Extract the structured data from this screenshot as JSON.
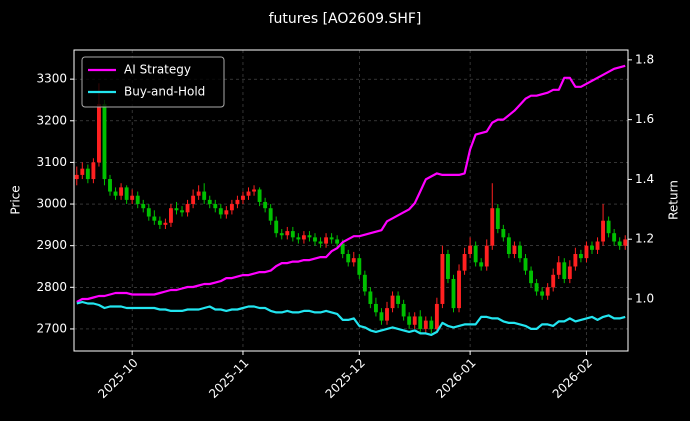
{
  "chart_data": {
    "type": "candlestick-with-returns",
    "title": "futures [AO2609.SHF]",
    "ylabel": "Price",
    "y2label": "Return",
    "up_color": "#ff2020",
    "down_color": "#00c000",
    "grid": true,
    "legend": "upper left",
    "categories": [
      null,
      null,
      null,
      null,
      null,
      null,
      null,
      null,
      null,
      null,
      null,
      null,
      null,
      null,
      null,
      null,
      null,
      null,
      null,
      null,
      null,
      null,
      null,
      null,
      null,
      null,
      null,
      null,
      null,
      null,
      null,
      null,
      null,
      null,
      null,
      null,
      null,
      null,
      null,
      null,
      null,
      null,
      null,
      null,
      null,
      null,
      null,
      null,
      null,
      null,
      null,
      null,
      null,
      null,
      null,
      null,
      null,
      null,
      null,
      null,
      null,
      null,
      null,
      null,
      null,
      null,
      null,
      null,
      null,
      null,
      null,
      null,
      null,
      null,
      null,
      null,
      null,
      null,
      null,
      null,
      null,
      null,
      null,
      null,
      null,
      null,
      null,
      null,
      null,
      null,
      null,
      null,
      null,
      null,
      null,
      null,
      null,
      null,
      null,
      null
    ],
    "xticks": [
      {
        "value": 10,
        "label": "2025-10"
      },
      {
        "value": 30,
        "label": "2025-11"
      },
      {
        "value": 51,
        "label": "2025-12"
      },
      {
        "value": 71,
        "label": "2026-01"
      },
      {
        "value": 92,
        "label": "2026-02"
      }
    ],
    "ylim": [
      2647,
      3370
    ],
    "yticks": [
      2700,
      2800,
      2900,
      3000,
      3100,
      3200,
      3300
    ],
    "y2lim": [
      0.826,
      1.833
    ],
    "y2ticks": [
      {
        "value": 1,
        "label": "1.0"
      },
      1.2,
      1.4,
      1.6,
      1.8
    ],
    "open": [
      3060,
      3070,
      3085,
      3060,
      3100,
      3240,
      3060,
      3030,
      3020,
      3040,
      3010,
      3020,
      3000,
      2990,
      2970,
      2960,
      2950,
      2955,
      2990,
      2985,
      2980,
      3000,
      3020,
      3030,
      3010,
      3000,
      2990,
      2975,
      2985,
      3000,
      3010,
      3020,
      3030,
      3035,
      3005,
      2990,
      2960,
      2930,
      2925,
      2935,
      2920,
      2915,
      2925,
      2920,
      2910,
      2905,
      2920,
      2915,
      2905,
      2880,
      2860,
      2870,
      2830,
      2790,
      2760,
      2740,
      2720,
      2750,
      2780,
      2760,
      2730,
      2710,
      2730,
      2700,
      2720,
      2700,
      2760,
      2880,
      2820,
      2750,
      2840,
      2880,
      2900,
      2860,
      2850,
      2900,
      2990,
      2940,
      2920,
      2880,
      2900,
      2870,
      2840,
      2810,
      2790,
      2780,
      2800,
      2830,
      2860,
      2820,
      2850,
      2880,
      2870,
      2900,
      2890,
      2910,
      2960,
      2930,
      2910,
      2900
    ],
    "high": [
      3090,
      3100,
      3095,
      3110,
      3290,
      3250,
      3070,
      3040,
      3050,
      3045,
      3035,
      3030,
      3010,
      3000,
      2985,
      2970,
      2965,
      3000,
      3005,
      2995,
      3010,
      3035,
      3045,
      3050,
      3020,
      3010,
      3000,
      2995,
      3010,
      3020,
      3030,
      3040,
      3045,
      3040,
      3015,
      3000,
      2970,
      2940,
      2945,
      2945,
      2930,
      2935,
      2935,
      2930,
      2920,
      2930,
      2930,
      2925,
      2915,
      2890,
      2885,
      2880,
      2840,
      2800,
      2775,
      2750,
      2765,
      2790,
      2790,
      2770,
      2740,
      2740,
      2745,
      2730,
      2730,
      2775,
      2900,
      2890,
      2830,
      2855,
      2895,
      2920,
      2910,
      2870,
      2915,
      3050,
      3000,
      2950,
      2930,
      2910,
      2910,
      2880,
      2850,
      2820,
      2800,
      2810,
      2845,
      2875,
      2870,
      2865,
      2895,
      2890,
      2910,
      2910,
      2920,
      3000,
      2970,
      2940,
      2920,
      2925
    ],
    "low": [
      3045,
      3060,
      3050,
      3050,
      3090,
      3045,
      3020,
      3010,
      3010,
      3000,
      3000,
      2990,
      2980,
      2960,
      2950,
      2940,
      2940,
      2945,
      2975,
      2970,
      2970,
      2990,
      3010,
      3000,
      2990,
      2980,
      2965,
      2965,
      2975,
      2990,
      3000,
      3010,
      3020,
      2995,
      2980,
      2950,
      2920,
      2915,
      2915,
      2910,
      2905,
      2905,
      2910,
      2900,
      2895,
      2895,
      2905,
      2895,
      2870,
      2850,
      2850,
      2820,
      2780,
      2750,
      2730,
      2710,
      2710,
      2740,
      2750,
      2720,
      2700,
      2700,
      2690,
      2690,
      2690,
      2690,
      2750,
      2810,
      2740,
      2740,
      2830,
      2870,
      2850,
      2840,
      2840,
      2890,
      2930,
      2910,
      2870,
      2870,
      2860,
      2830,
      2800,
      2780,
      2770,
      2770,
      2790,
      2820,
      2810,
      2810,
      2840,
      2860,
      2860,
      2880,
      2880,
      2900,
      2920,
      2900,
      2890,
      2890
    ],
    "close": [
      3070,
      3085,
      3060,
      3100,
      3240,
      3060,
      3030,
      3020,
      3040,
      3010,
      3020,
      3000,
      2990,
      2970,
      2960,
      2950,
      2955,
      2990,
      2985,
      2980,
      3000,
      3020,
      3030,
      3010,
      3000,
      2990,
      2975,
      2985,
      3000,
      3010,
      3020,
      3030,
      3035,
      3005,
      2990,
      2960,
      2930,
      2925,
      2935,
      2920,
      2915,
      2925,
      2920,
      2910,
      2905,
      2920,
      2915,
      2905,
      2880,
      2860,
      2870,
      2830,
      2790,
      2760,
      2740,
      2720,
      2750,
      2780,
      2760,
      2730,
      2710,
      2730,
      2700,
      2720,
      2700,
      2760,
      2880,
      2820,
      2750,
      2840,
      2880,
      2900,
      2860,
      2850,
      2900,
      2990,
      2940,
      2920,
      2880,
      2900,
      2870,
      2840,
      2810,
      2790,
      2780,
      2800,
      2830,
      2860,
      2820,
      2850,
      2880,
      2870,
      2900,
      2890,
      2910,
      2960,
      2930,
      2910,
      2900,
      2915
    ],
    "series": [
      {
        "name": "AI Strategy",
        "color": "#ff00ff",
        "axis": "y2",
        "values": [
          0.99,
          1.0,
          1.0,
          1.005,
          1.01,
          1.01,
          1.015,
          1.02,
          1.02,
          1.02,
          1.015,
          1.015,
          1.015,
          1.015,
          1.015,
          1.02,
          1.025,
          1.03,
          1.03,
          1.035,
          1.04,
          1.04,
          1.045,
          1.05,
          1.05,
          1.055,
          1.06,
          1.07,
          1.07,
          1.075,
          1.08,
          1.08,
          1.085,
          1.09,
          1.09,
          1.095,
          1.11,
          1.12,
          1.12,
          1.125,
          1.125,
          1.13,
          1.13,
          1.135,
          1.14,
          1.14,
          1.16,
          1.17,
          1.19,
          1.2,
          1.21,
          1.21,
          1.215,
          1.22,
          1.225,
          1.23,
          1.26,
          1.27,
          1.28,
          1.29,
          1.3,
          1.32,
          1.36,
          1.4,
          1.41,
          1.42,
          1.415,
          1.415,
          1.415,
          1.415,
          1.42,
          1.5,
          1.55,
          1.555,
          1.56,
          1.59,
          1.6,
          1.6,
          1.615,
          1.63,
          1.65,
          1.67,
          1.68,
          1.68,
          1.685,
          1.69,
          1.7,
          1.7,
          1.74,
          1.74,
          1.71,
          1.71,
          1.72,
          1.73,
          1.74,
          1.75,
          1.76,
          1.77,
          1.775,
          1.78
        ]
      },
      {
        "name": "Buy-and-Hold",
        "color": "#22e5f0",
        "axis": "y2",
        "values": [
          0.985,
          0.99,
          0.985,
          0.985,
          0.98,
          0.97,
          0.975,
          0.975,
          0.975,
          0.97,
          0.97,
          0.97,
          0.97,
          0.97,
          0.97,
          0.965,
          0.965,
          0.96,
          0.96,
          0.96,
          0.965,
          0.965,
          0.965,
          0.97,
          0.975,
          0.965,
          0.965,
          0.96,
          0.965,
          0.965,
          0.97,
          0.975,
          0.975,
          0.97,
          0.97,
          0.96,
          0.955,
          0.955,
          0.96,
          0.955,
          0.955,
          0.96,
          0.96,
          0.955,
          0.955,
          0.96,
          0.955,
          0.95,
          0.93,
          0.93,
          0.935,
          0.91,
          0.905,
          0.895,
          0.89,
          0.895,
          0.9,
          0.905,
          0.9,
          0.895,
          0.89,
          0.895,
          0.885,
          0.885,
          0.88,
          0.89,
          0.92,
          0.91,
          0.905,
          0.91,
          0.915,
          0.915,
          0.915,
          0.94,
          0.94,
          0.935,
          0.935,
          0.925,
          0.92,
          0.92,
          0.915,
          0.91,
          0.9,
          0.9,
          0.915,
          0.915,
          0.91,
          0.925,
          0.925,
          0.935,
          0.925,
          0.93,
          0.935,
          0.94,
          0.93,
          0.94,
          0.945,
          0.935,
          0.935,
          0.94
        ]
      }
    ]
  }
}
